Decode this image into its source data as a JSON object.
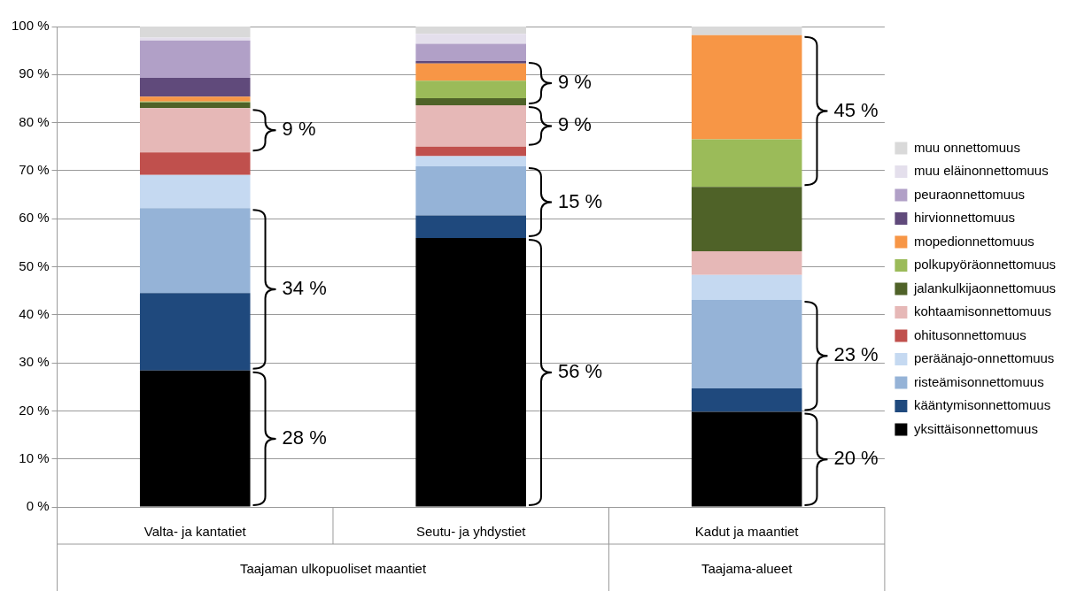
{
  "chart_data": {
    "type": "bar",
    "stacked": true,
    "categories": [
      "Valta- ja kantatiet",
      "Seutu- ja yhdystiet",
      "Kadut ja maantiet"
    ],
    "series": [
      {
        "name": "yksittäisonnettomuus",
        "color": "#000000",
        "values": [
          28.4,
          56.0,
          19.8
        ]
      },
      {
        "name": "kääntymisonnettomuus",
        "color": "#1f497d",
        "values": [
          16.1,
          4.7,
          4.9
        ]
      },
      {
        "name": "risteämisonnettomuus",
        "color": "#95b3d7",
        "values": [
          17.7,
          10.2,
          18.4
        ]
      },
      {
        "name": "peräänajo-onnettomuus",
        "color": "#c5d9f1",
        "values": [
          6.9,
          2.1,
          5.2
        ]
      },
      {
        "name": "ohitusonnettomuus",
        "color": "#c0504d",
        "values": [
          4.7,
          2.0,
          0
        ]
      },
      {
        "name": "kohtaamisonnettomuus",
        "color": "#e6b8b7",
        "values": [
          9.2,
          8.6,
          4.9
        ]
      },
      {
        "name": "jalankulkijaonnettomuus",
        "color": "#4f6228",
        "values": [
          1.2,
          1.5,
          13.4
        ]
      },
      {
        "name": "polkupyöräonnettomuus",
        "color": "#9bbb59",
        "values": [
          0.2,
          3.6,
          9.9
        ]
      },
      {
        "name": "mopedionnettomuus",
        "color": "#f79646",
        "values": [
          1.0,
          3.6,
          21.7
        ]
      },
      {
        "name": "hirvionnettomuus",
        "color": "#604a7b",
        "values": [
          3.9,
          0.5,
          0
        ]
      },
      {
        "name": "peuraonnettomuus",
        "color": "#b1a0c7",
        "values": [
          7.8,
          3.6,
          0
        ]
      },
      {
        "name": "muu eläinonnettomuus",
        "color": "#e4dfec",
        "values": [
          0.6,
          2.1,
          0
        ]
      },
      {
        "name": "muu onnettomuus",
        "color": "#d9d9d9",
        "values": [
          2.3,
          1.5,
          1.8
        ]
      }
    ],
    "ylim": [
      0,
      100
    ],
    "yticks": [
      {
        "value": 0,
        "label": "0 %"
      },
      {
        "value": 10,
        "label": "10 %"
      },
      {
        "value": 20,
        "label": "20 %"
      },
      {
        "value": 30,
        "label": "30 %"
      },
      {
        "value": 40,
        "label": "40 %"
      },
      {
        "value": 50,
        "label": "50 %"
      },
      {
        "value": 60,
        "label": "60 %"
      },
      {
        "value": 70,
        "label": "70 %"
      },
      {
        "value": 80,
        "label": "80 %"
      },
      {
        "value": 90,
        "label": "90 %"
      },
      {
        "value": 100,
        "label": "100 %"
      }
    ],
    "grid": "y",
    "legend": "right",
    "annotations": [
      "28 %",
      "34 %",
      "9 %",
      "56 %",
      "15 %",
      "9 %",
      "9 %",
      "45 %",
      "23 %",
      "20 %",
      "Taajaman ulkopuoliset maantiet",
      "Taajama-alueet"
    ]
  }
}
